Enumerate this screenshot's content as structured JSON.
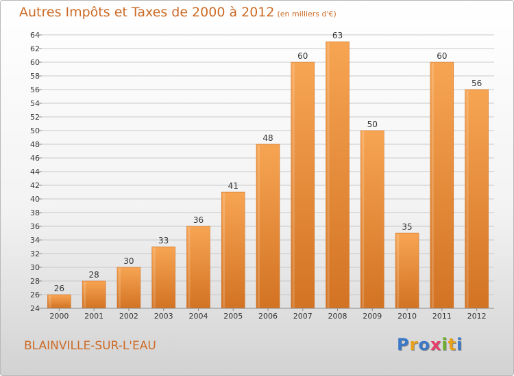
{
  "header": {
    "title": "Autres Impôts et Taxes de 2000 à 2012",
    "unit": "(en milliers d'€)"
  },
  "footer": {
    "city": "BLAINVILLE-SUR-L'EAU",
    "brand": [
      "P",
      "r",
      "o",
      "x",
      "i",
      "t",
      "i"
    ],
    "brand_colors": [
      "#3a78c8",
      "#e8a21a",
      "#3a78c8",
      "#e83a6a",
      "#6aae2a",
      "#e8a21a",
      "#3a78c8"
    ]
  },
  "colors": {
    "title": "#cc6a24",
    "bar_light": "#f7a553",
    "bar_dark": "#d27323",
    "grid": "#c8c8c8"
  },
  "chart_data": {
    "type": "bar",
    "title": "Autres Impôts et Taxes de 2000 à 2012",
    "subtitle": "(en milliers d'€)",
    "categories": [
      "2000",
      "2001",
      "2002",
      "2003",
      "2004",
      "2005",
      "2006",
      "2007",
      "2008",
      "2009",
      "2010",
      "2011",
      "2012"
    ],
    "values": [
      26,
      28,
      30,
      33,
      36,
      41,
      48,
      60,
      63,
      50,
      35,
      60,
      56
    ],
    "ylim": [
      24,
      64
    ],
    "ytick_step": 2,
    "grid": true,
    "data_labels": true
  }
}
